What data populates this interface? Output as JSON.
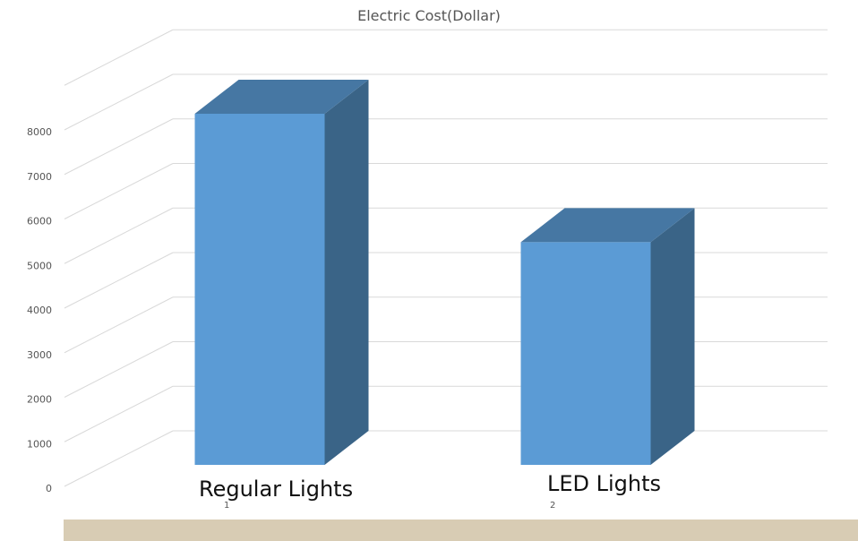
{
  "chart_data": {
    "type": "bar",
    "title": "Electric Cost(Dollar)",
    "xlabel": "",
    "ylabel": "",
    "categories": [
      "Regular Lights",
      "LED Lights"
    ],
    "index_labels": [
      "1",
      "2"
    ],
    "series": [
      {
        "values": [
          8200,
          5200
        ]
      }
    ],
    "y_ticks": [
      "0",
      "1000",
      "2000",
      "3000",
      "4000",
      "5000",
      "6000",
      "7000",
      "8000"
    ],
    "ylim": [
      0,
      9000
    ],
    "grid": true,
    "legend": "none",
    "three_d": true,
    "colors": {
      "front": "#5b9bd5",
      "side": "#3a6487",
      "top": "#4677a3",
      "grid": "#d9d9d9",
      "tick_text": "#555555",
      "category_text": "#111111",
      "footer_band": "#d8ccb4"
    }
  }
}
